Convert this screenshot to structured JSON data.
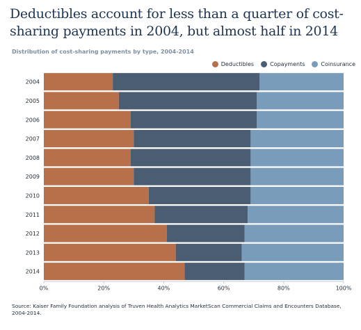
{
  "title": "Deductibles account for less than a quarter of cost-sharing payments in 2004, but almost half in 2014",
  "subtitle": "Distribution of cost-sharing payments by type, 2004-2014",
  "source": "Source: Kaiser Family Foundation analysis of Truven Health Analytics MarketScan Commercial Claims and Encounters Database, 2004-2014.",
  "colors": {
    "deductibles": "#b8704a",
    "copayments": "#4a5d72",
    "coinsurance": "#7a9cbb"
  },
  "chart_data": {
    "type": "bar",
    "orientation": "horizontal",
    "stacked": true,
    "percent": true,
    "title": "Deductibles account for less than a quarter of cost-sharing payments in 2004, but almost half in 2014",
    "subtitle": "Distribution of cost-sharing payments by type, 2004-2014",
    "categories": [
      "2004",
      "2005",
      "2006",
      "2007",
      "2008",
      "2009",
      "2010",
      "2011",
      "2012",
      "2013",
      "2014"
    ],
    "series": [
      {
        "name": "Deductibles",
        "color": "#b8704a",
        "values": [
          23,
          25,
          29,
          30,
          29,
          30,
          35,
          37,
          41,
          44,
          47
        ]
      },
      {
        "name": "Copayments",
        "color": "#4a5d72",
        "values": [
          49,
          46,
          42,
          39,
          40,
          39,
          34,
          31,
          26,
          22,
          20
        ]
      },
      {
        "name": "Coinsurance",
        "color": "#7a9cbb",
        "values": [
          28,
          29,
          29,
          31,
          31,
          31,
          31,
          32,
          33,
          34,
          33
        ]
      }
    ],
    "xlim": [
      0,
      100
    ],
    "xticks": [
      "0%",
      "20%",
      "40%",
      "60%",
      "80%",
      "100%"
    ],
    "legend_position": "top-right",
    "grid": false
  }
}
